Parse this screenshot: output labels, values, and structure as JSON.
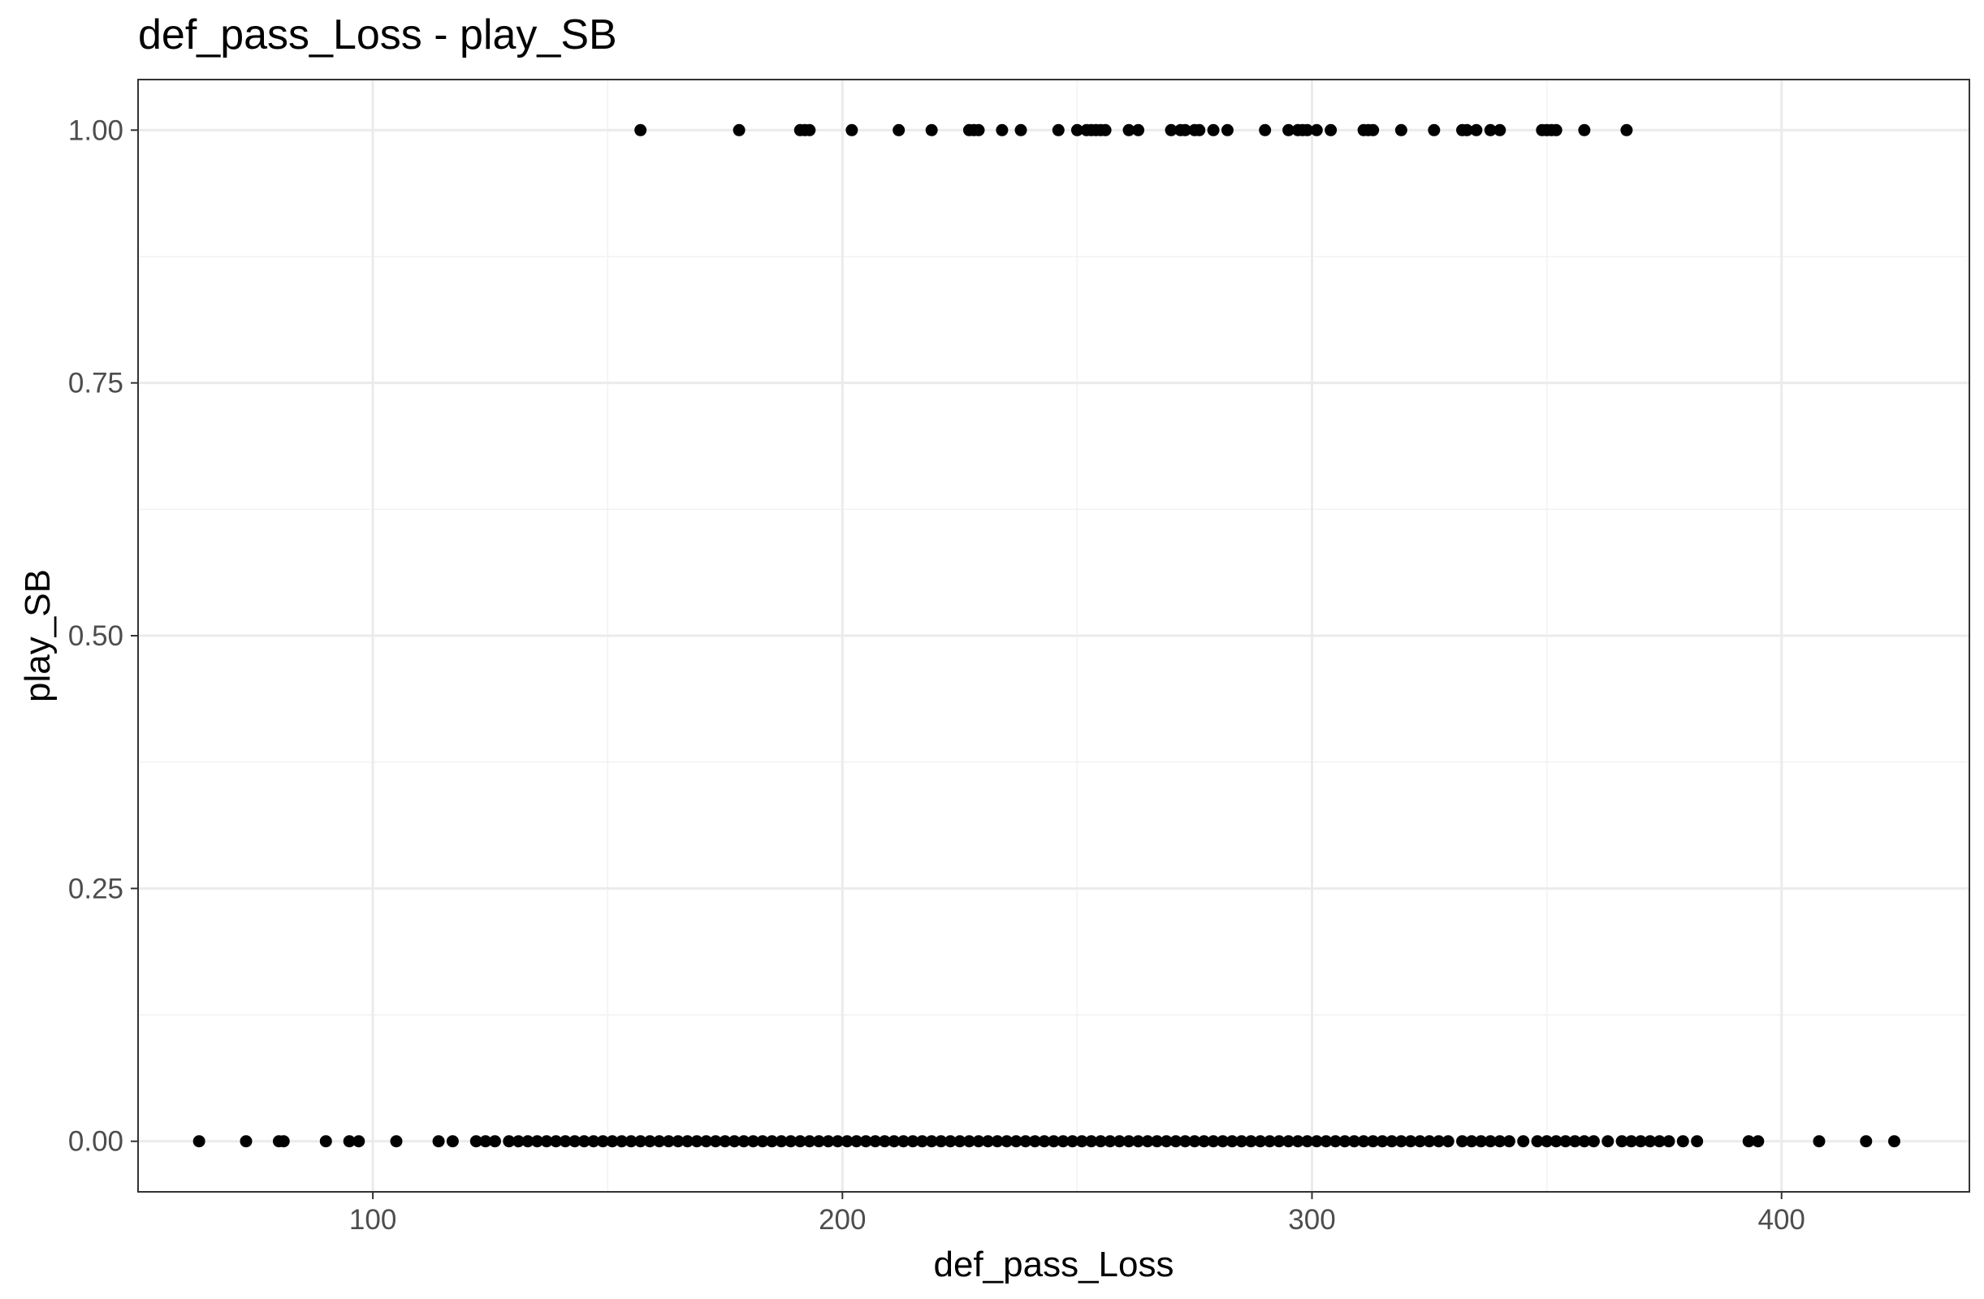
{
  "chart_data": {
    "type": "scatter",
    "title": "def_pass_Loss - play_SB",
    "xlabel": "def_pass_Loss",
    "ylabel": "play_SB",
    "xlim": [
      50,
      440
    ],
    "ylim": [
      -0.05,
      1.05
    ],
    "x_ticks": [
      100,
      200,
      300,
      400
    ],
    "x_tick_labels": [
      "100",
      "200",
      "300",
      "400"
    ],
    "x_minor_ticks": [
      50,
      150,
      250,
      350
    ],
    "y_ticks": [
      0,
      0.25,
      0.5,
      0.75,
      1.0
    ],
    "y_tick_labels": [
      "0.00",
      "0.25",
      "0.50",
      "0.75",
      "1.00"
    ],
    "y_minor_ticks": [
      0.125,
      0.375,
      0.625,
      0.875
    ],
    "grid": true,
    "legend": "none",
    "point_color": "#000000",
    "series": [
      {
        "points_y1_x": [
          157,
          178,
          191,
          192,
          193,
          202,
          212,
          219,
          227,
          228,
          229,
          234,
          238,
          246,
          250,
          252,
          253,
          254,
          255,
          256,
          261,
          263,
          270,
          272,
          273,
          275,
          276,
          279,
          282,
          290,
          295,
          297,
          298,
          299,
          301,
          304,
          311,
          312,
          313,
          319,
          326,
          332,
          333,
          335,
          338,
          340,
          349,
          350,
          351,
          352,
          358,
          367
        ],
        "points_y0_x": [
          63,
          73,
          80,
          81,
          90,
          95,
          97,
          105,
          114,
          117,
          122,
          124,
          126,
          129,
          131,
          133,
          135,
          137,
          139,
          141,
          143,
          145,
          147,
          149,
          151,
          153,
          155,
          157,
          159,
          161,
          163,
          165,
          167,
          169,
          171,
          173,
          175,
          177,
          179,
          181,
          183,
          185,
          187,
          189,
          191,
          193,
          195,
          197,
          199,
          201,
          203,
          205,
          207,
          209,
          211,
          213,
          215,
          217,
          219,
          221,
          223,
          225,
          227,
          229,
          231,
          233,
          235,
          237,
          239,
          241,
          243,
          245,
          247,
          249,
          251,
          253,
          255,
          257,
          259,
          261,
          263,
          265,
          267,
          269,
          271,
          273,
          275,
          277,
          279,
          281,
          283,
          285,
          287,
          289,
          291,
          293,
          295,
          297,
          299,
          301,
          303,
          305,
          307,
          309,
          311,
          313,
          315,
          317,
          319,
          321,
          323,
          325,
          327,
          329,
          332,
          334,
          336,
          338,
          340,
          342,
          345,
          348,
          350,
          352,
          354,
          356,
          358,
          360,
          363,
          366,
          368,
          370,
          372,
          374,
          376,
          379,
          382,
          393,
          395,
          408,
          418,
          424
        ]
      }
    ]
  }
}
